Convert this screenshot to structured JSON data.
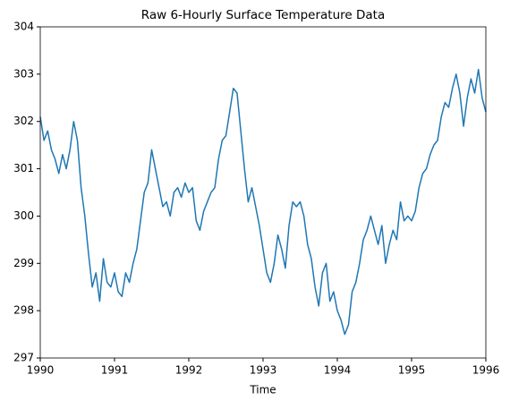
{
  "chart_data": {
    "type": "line",
    "title": "Raw 6-Hourly Surface Temperature Data",
    "x_label": "Time",
    "x": [
      1990.0,
      1990.05,
      1990.1,
      1990.15,
      1990.2,
      1990.25,
      1990.3,
      1990.35,
      1990.4,
      1990.45,
      1990.5,
      1990.55,
      1990.6,
      1990.65,
      1990.7,
      1990.75,
      1990.8,
      1990.85,
      1990.9,
      1990.95,
      1991.0,
      1991.05,
      1991.1,
      1991.15,
      1991.2,
      1991.25,
      1991.3,
      1991.35,
      1991.4,
      1991.45,
      1991.5,
      1991.55,
      1991.6,
      1991.65,
      1991.7,
      1991.75,
      1991.8,
      1991.85,
      1991.9,
      1991.95,
      1992.0,
      1992.05,
      1992.1,
      1992.15,
      1992.2,
      1992.25,
      1992.3,
      1992.35,
      1992.4,
      1992.45,
      1992.5,
      1992.55,
      1992.6,
      1992.65,
      1992.7,
      1992.75,
      1992.8,
      1992.85,
      1992.9,
      1992.95,
      1993.0,
      1993.05,
      1993.1,
      1993.15,
      1993.2,
      1993.25,
      1993.3,
      1993.35,
      1993.4,
      1993.45,
      1993.5,
      1993.55,
      1993.6,
      1993.65,
      1993.7,
      1993.75,
      1993.8,
      1993.85,
      1993.9,
      1993.95,
      1994.0,
      1994.05,
      1994.1,
      1994.15,
      1994.2,
      1994.25,
      1994.3,
      1994.35,
      1994.4,
      1994.45,
      1994.5,
      1994.55,
      1994.6,
      1994.65,
      1994.7,
      1994.75,
      1994.8,
      1994.85,
      1994.9,
      1994.95,
      1995.0,
      1995.05,
      1995.1,
      1995.15,
      1995.2,
      1995.25,
      1995.3,
      1995.35,
      1995.4,
      1995.45,
      1995.5,
      1995.55,
      1995.6,
      1995.65,
      1995.7,
      1995.75,
      1995.8,
      1995.85,
      1995.9,
      1995.95,
      1996.0
    ],
    "series": [
      {
        "name": "Surface Temperature",
        "color": "#1f77b4",
        "values": [
          302.1,
          301.6,
          301.8,
          301.4,
          301.2,
          300.9,
          301.3,
          301.0,
          301.4,
          302.0,
          301.6,
          300.6,
          300.0,
          299.2,
          298.5,
          298.8,
          298.2,
          299.1,
          298.6,
          298.5,
          298.8,
          298.4,
          298.3,
          298.8,
          298.6,
          299.0,
          299.3,
          299.9,
          300.5,
          300.7,
          301.4,
          301.0,
          300.6,
          300.2,
          300.3,
          300.0,
          300.5,
          300.6,
          300.4,
          300.7,
          300.5,
          300.6,
          299.9,
          299.7,
          300.1,
          300.3,
          300.5,
          300.6,
          301.2,
          301.6,
          301.7,
          302.2,
          302.7,
          302.6,
          301.8,
          301.0,
          300.3,
          300.6,
          300.2,
          299.8,
          299.3,
          298.8,
          298.6,
          299.0,
          299.6,
          299.3,
          298.9,
          299.8,
          300.3,
          300.2,
          300.3,
          300.0,
          299.4,
          299.1,
          298.5,
          298.1,
          298.8,
          299.0,
          298.2,
          298.4,
          298.0,
          297.8,
          297.5,
          297.7,
          298.4,
          298.6,
          299.0,
          299.5,
          299.7,
          300.0,
          299.7,
          299.4,
          299.8,
          299.0,
          299.4,
          299.7,
          299.5,
          300.3,
          299.9,
          300.0,
          299.9,
          300.1,
          300.6,
          300.9,
          301.0,
          301.3,
          301.5,
          301.6,
          302.1,
          302.4,
          302.3,
          302.7,
          303.0,
          302.6,
          301.9,
          302.5,
          302.9,
          302.6,
          303.1,
          302.5,
          302.2
        ]
      }
    ],
    "xlim": [
      1990,
      1996
    ],
    "xticks": [
      1990,
      1991,
      1992,
      1993,
      1994,
      1995,
      1996
    ],
    "ylim": [
      297,
      304
    ],
    "yticks": [
      297,
      298,
      299,
      300,
      301,
      302,
      303,
      304
    ],
    "grid": false
  }
}
